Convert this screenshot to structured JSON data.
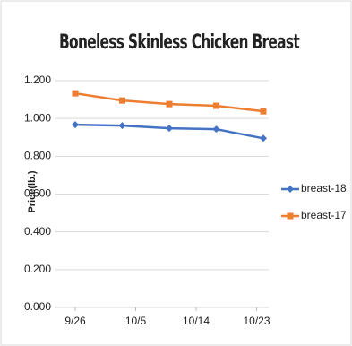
{
  "chart_data": {
    "type": "line",
    "title": "Boneless Skinless Chicken Breast",
    "y_label": "Price(lb.)",
    "x": [
      0,
      7,
      14,
      21,
      28
    ],
    "xlim": [
      0,
      28
    ],
    "xticks": [
      {
        "value": 0,
        "label": "9/26"
      },
      {
        "value": 9,
        "label": "10/5"
      },
      {
        "value": 18,
        "label": "10/14"
      },
      {
        "value": 27,
        "label": "10/23"
      }
    ],
    "ylim": [
      0,
      1.2
    ],
    "yticks": [
      {
        "value": 0,
        "label": "0.000"
      },
      {
        "value": 0.2,
        "label": "0.200"
      },
      {
        "value": 0.4,
        "label": "0.400"
      },
      {
        "value": 0.6,
        "label": "0.600"
      },
      {
        "value": 0.8,
        "label": "0.800"
      },
      {
        "value": 1.0,
        "label": "1.000"
      },
      {
        "value": 1.2,
        "label": "1.200"
      }
    ],
    "grid": true,
    "series": [
      {
        "name": "breast-18",
        "color": "#4472c4",
        "marker": "diamond",
        "values": [
          0.967,
          0.962,
          0.948,
          0.943,
          0.895
        ]
      },
      {
        "name": "breast-17",
        "color": "#ed7d31",
        "marker": "square",
        "values": [
          1.133,
          1.095,
          1.076,
          1.067,
          1.038
        ]
      }
    ]
  }
}
